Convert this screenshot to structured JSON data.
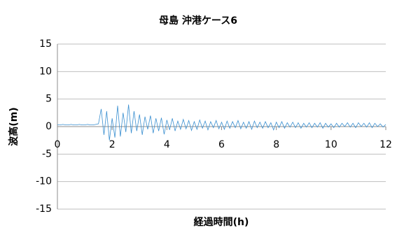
{
  "chart_data": {
    "type": "line",
    "title": "母島 沖港ケース6",
    "xlabel": "経過時間(h)",
    "ylabel": "波高(m)",
    "x": [
      0,
      0.1,
      0.2,
      0.3,
      0.4,
      0.5,
      0.6,
      0.7,
      0.8,
      0.9,
      1,
      1.1,
      1.2,
      1.3,
      1.4,
      1.5,
      1.6,
      1.7,
      1.8,
      1.9,
      2,
      2.1,
      2.2,
      2.3,
      2.4,
      2.5,
      2.6,
      2.7,
      2.8,
      2.9,
      3,
      3.1,
      3.2,
      3.3,
      3.4,
      3.5,
      3.6,
      3.7,
      3.8,
      3.9,
      4,
      4.1,
      4.2,
      4.3,
      4.4,
      4.5,
      4.6,
      4.7,
      4.8,
      4.9,
      5,
      5.1,
      5.2,
      5.3,
      5.4,
      5.5,
      5.6,
      5.7,
      5.8,
      5.9,
      6,
      6.1,
      6.2,
      6.3,
      6.4,
      6.5,
      6.6,
      6.7,
      6.8,
      6.9,
      7,
      7.1,
      7.2,
      7.3,
      7.4,
      7.5,
      7.6,
      7.7,
      7.8,
      7.9,
      8,
      8.1,
      8.2,
      8.3,
      8.4,
      8.5,
      8.6,
      8.7,
      8.8,
      8.9,
      9,
      9.1,
      9.2,
      9.3,
      9.4,
      9.5,
      9.6,
      9.7,
      9.8,
      9.9,
      10,
      10.1,
      10.2,
      10.3,
      10.4,
      10.5,
      10.6,
      10.7,
      10.8,
      10.9,
      11,
      11.1,
      11.2,
      11.3,
      11.4,
      11.5,
      11.6,
      11.7,
      11.8,
      11.9,
      12
    ],
    "series": [
      {
        "color": "#3a8fd0",
        "values": [
          0.3,
          0.3,
          0.4,
          0.3,
          0.3,
          0.4,
          0.3,
          0.3,
          0.4,
          0.3,
          0.3,
          0.4,
          0.3,
          0.3,
          0.4,
          0.5,
          3.2,
          -1.5,
          2.8,
          -2.5,
          1.5,
          -2.0,
          3.8,
          -1.8,
          2.5,
          -1.0,
          4.0,
          -1.2,
          2.8,
          -0.8,
          2.2,
          -1.5,
          1.8,
          -0.5,
          2.0,
          -1.2,
          1.5,
          -0.8,
          1.6,
          -1.4,
          1.2,
          -0.6,
          1.5,
          -0.8,
          1.0,
          -0.5,
          1.3,
          -0.4,
          1.1,
          -0.7,
          0.9,
          -0.5,
          1.2,
          -0.3,
          1.0,
          -0.6,
          0.9,
          -0.2,
          1.1,
          -0.4,
          0.8,
          -0.5,
          1.0,
          -0.3,
          0.9,
          -0.2,
          1.1,
          -0.4,
          0.8,
          -0.3,
          0.9,
          -0.5,
          1.0,
          -0.2,
          0.8,
          -0.3,
          0.9,
          -0.2,
          0.7,
          -0.6,
          0.8,
          -0.2,
          0.9,
          -0.3,
          0.7,
          -0.1,
          0.8,
          -0.2,
          0.7,
          -0.3,
          0.6,
          -0.1,
          0.7,
          -0.2,
          0.6,
          -0.1,
          0.7,
          -0.3,
          0.6,
          -0.1,
          0.5,
          -0.2,
          0.6,
          -0.1,
          0.6,
          0.0,
          0.7,
          -0.1,
          0.6,
          -0.2,
          0.7,
          0.0,
          0.6,
          -0.1,
          0.7,
          -0.2,
          0.6,
          0.0,
          0.5,
          -0.1,
          0.4
        ]
      }
    ],
    "xlim": [
      0,
      12
    ],
    "xticks": [
      0,
      2,
      4,
      6,
      8,
      10,
      12
    ],
    "ylim": [
      -15,
      15
    ],
    "yticks": [
      -15,
      -10,
      -5,
      0,
      5,
      10,
      15
    ],
    "grid": true
  }
}
